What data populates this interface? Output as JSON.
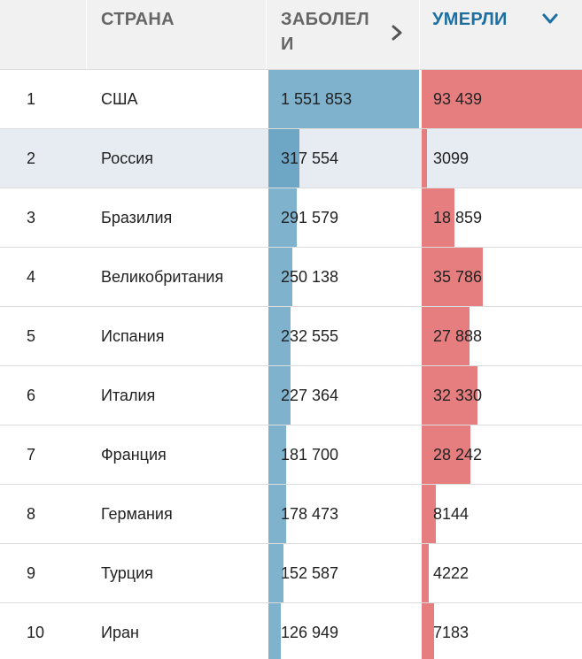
{
  "header": {
    "country": "СТРАНА",
    "cases": "ЗАБОЛЕЛИ",
    "deaths": "УМЕРЛИ"
  },
  "icons": {
    "cases_sort": "chevron-right-icon",
    "deaths_sort": "chevron-down-icon"
  },
  "colors": {
    "cases_bar": "#7fb2cd",
    "deaths_bar": "#e67e7f",
    "active_header": "#1b6fa3"
  },
  "highlighted_row": 2,
  "rows": [
    {
      "rank": "1",
      "country": "США",
      "cases": "1 551 853",
      "deaths": "93 439",
      "cases_num": 1551853,
      "deaths_num": 93439
    },
    {
      "rank": "2",
      "country": "Россия",
      "cases": "317 554",
      "deaths": "3099",
      "cases_num": 317554,
      "deaths_num": 3099
    },
    {
      "rank": "3",
      "country": "Бразилия",
      "cases": "291 579",
      "deaths": "18 859",
      "cases_num": 291579,
      "deaths_num": 18859
    },
    {
      "rank": "4",
      "country": "Великобритания",
      "cases": "250 138",
      "deaths": "35 786",
      "cases_num": 250138,
      "deaths_num": 35786
    },
    {
      "rank": "5",
      "country": "Испания",
      "cases": "232 555",
      "deaths": "27 888",
      "cases_num": 232555,
      "deaths_num": 27888
    },
    {
      "rank": "6",
      "country": "Италия",
      "cases": "227 364",
      "deaths": "32 330",
      "cases_num": 227364,
      "deaths_num": 32330
    },
    {
      "rank": "7",
      "country": "Франция",
      "cases": "181 700",
      "deaths": "28 242",
      "cases_num": 181700,
      "deaths_num": 28242
    },
    {
      "rank": "8",
      "country": "Германия",
      "cases": "178 473",
      "deaths": "8144",
      "cases_num": 178473,
      "deaths_num": 8144
    },
    {
      "rank": "9",
      "country": "Турция",
      "cases": "152 587",
      "deaths": "4222",
      "cases_num": 152587,
      "deaths_num": 4222
    },
    {
      "rank": "10",
      "country": "Иран",
      "cases": "126 949",
      "deaths": "7183",
      "cases_num": 126949,
      "deaths_num": 7183
    }
  ]
}
